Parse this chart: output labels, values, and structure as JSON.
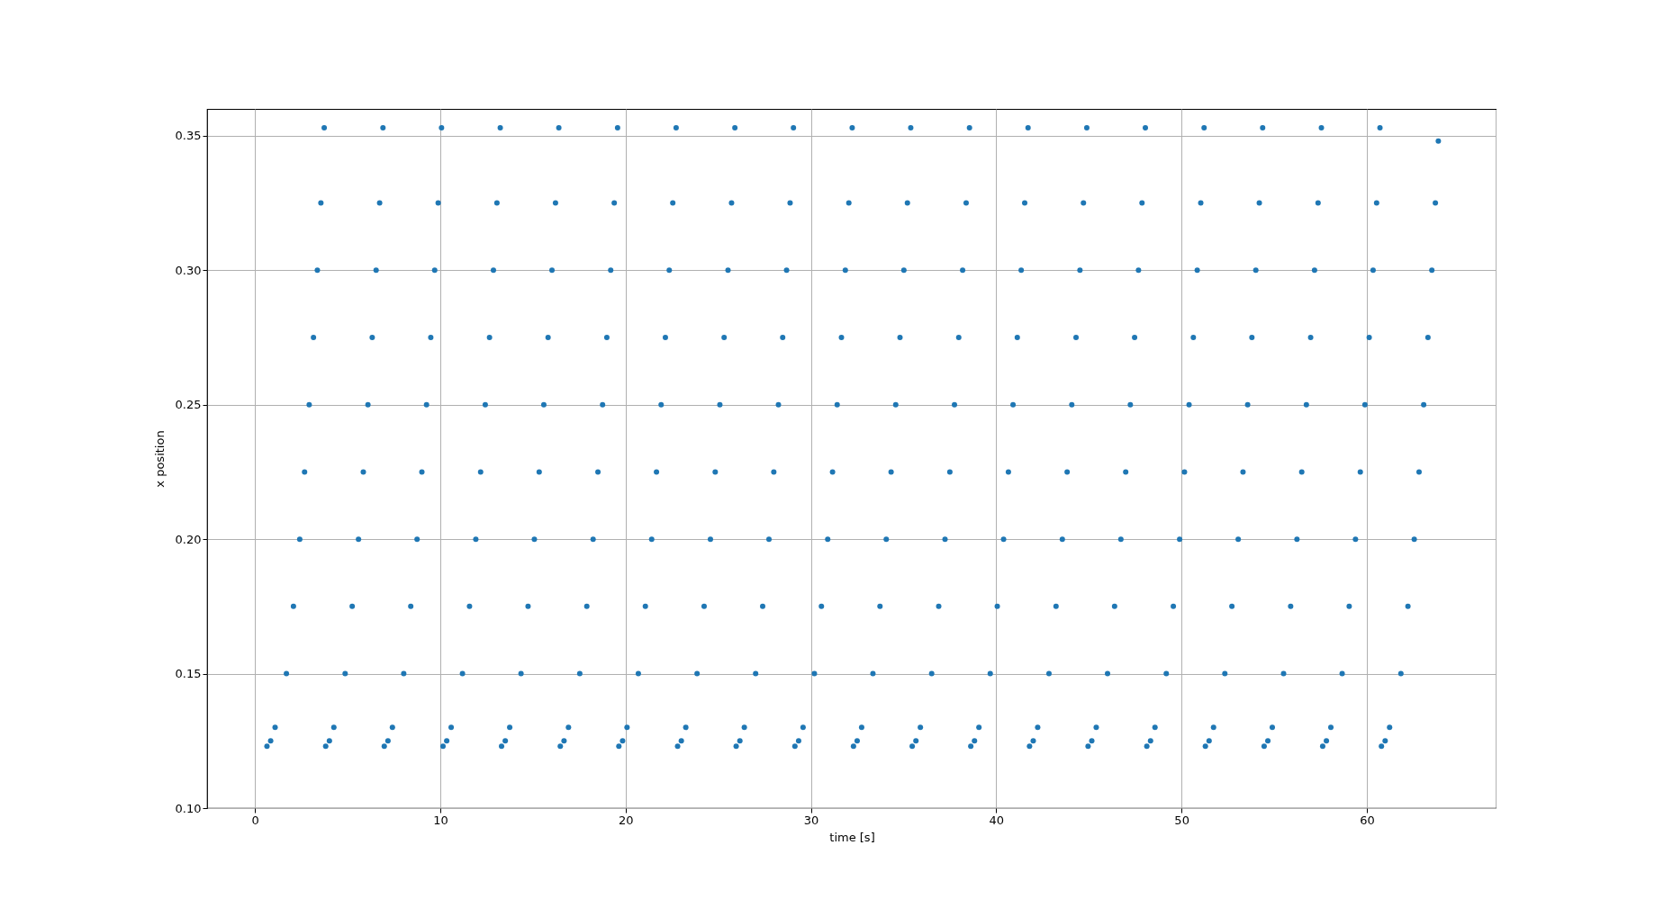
{
  "chart_data": {
    "type": "scatter",
    "xlabel": "time [s]",
    "ylabel": "x position",
    "xlim": [
      -2.58,
      67.0
    ],
    "ylim": [
      0.1,
      0.36
    ],
    "xticks": [
      0,
      10,
      20,
      30,
      40,
      50,
      60
    ],
    "yticks": [
      {
        "value": 0.1,
        "label": "0.10"
      },
      {
        "value": 0.15,
        "label": "0.15"
      },
      {
        "value": 0.2,
        "label": "0.20"
      },
      {
        "value": 0.25,
        "label": "0.25"
      },
      {
        "value": 0.3,
        "label": "0.30"
      },
      {
        "value": 0.35,
        "label": "0.35"
      }
    ],
    "grid": true,
    "marker": "circle",
    "series": [
      {
        "color": "#1f77b4",
        "x": [
          0.65,
          0.85,
          1.09,
          1.7,
          2.08,
          2.42,
          2.68,
          2.93,
          3.16,
          3.37,
          3.56,
          3.74,
          3.82,
          4.02,
          4.26,
          4.87,
          5.25,
          5.59,
          5.85,
          6.1,
          6.33,
          6.54,
          6.73,
          6.91,
          6.98,
          7.18,
          7.42,
          8.03,
          8.41,
          8.75,
          9.01,
          9.26,
          9.49,
          9.7,
          9.89,
          10.07,
          10.15,
          10.35,
          10.59,
          11.2,
          11.58,
          11.92,
          12.18,
          12.43,
          12.66,
          12.87,
          13.06,
          13.24,
          13.31,
          13.51,
          13.75,
          14.36,
          14.74,
          15.08,
          15.34,
          15.59,
          15.82,
          16.03,
          16.22,
          16.4,
          16.48,
          16.68,
          16.92,
          17.53,
          17.91,
          18.25,
          18.51,
          18.76,
          18.99,
          19.2,
          19.39,
          19.57,
          19.64,
          19.84,
          20.08,
          20.69,
          21.07,
          21.41,
          21.67,
          21.92,
          22.15,
          22.36,
          22.55,
          22.73,
          22.81,
          23.01,
          23.25,
          23.86,
          24.24,
          24.58,
          24.84,
          25.09,
          25.32,
          25.53,
          25.72,
          25.9,
          25.97,
          26.17,
          26.41,
          27.02,
          27.4,
          27.74,
          28.0,
          28.25,
          28.48,
          28.69,
          28.88,
          29.06,
          29.14,
          29.34,
          29.58,
          30.19,
          30.57,
          30.91,
          31.17,
          31.42,
          31.65,
          31.86,
          32.05,
          32.23,
          32.3,
          32.5,
          32.74,
          33.35,
          33.73,
          34.07,
          34.33,
          34.58,
          34.81,
          35.02,
          35.21,
          35.39,
          35.47,
          35.67,
          35.91,
          36.52,
          36.9,
          37.24,
          37.5,
          37.75,
          37.98,
          38.19,
          38.38,
          38.56,
          38.63,
          38.83,
          39.07,
          39.68,
          40.06,
          40.4,
          40.66,
          40.91,
          41.14,
          41.35,
          41.54,
          41.72,
          41.8,
          42.0,
          42.24,
          42.85,
          43.23,
          43.57,
          43.83,
          44.08,
          44.31,
          44.52,
          44.71,
          44.89,
          44.96,
          45.16,
          45.4,
          46.01,
          46.39,
          46.73,
          46.99,
          47.24,
          47.47,
          47.68,
          47.87,
          48.05,
          48.13,
          48.33,
          48.57,
          49.18,
          49.56,
          49.9,
          50.16,
          50.41,
          50.64,
          50.85,
          51.04,
          51.22,
          51.29,
          51.49,
          51.73,
          52.34,
          52.72,
          53.06,
          53.32,
          53.57,
          53.8,
          54.01,
          54.2,
          54.38,
          54.46,
          54.66,
          54.9,
          55.51,
          55.89,
          56.23,
          56.49,
          56.74,
          56.97,
          57.18,
          57.37,
          57.55,
          57.62,
          57.82,
          58.06,
          58.67,
          59.05,
          59.39,
          59.65,
          59.9,
          60.13,
          60.34,
          60.53,
          60.71,
          60.79,
          60.99,
          61.23,
          61.84,
          62.22,
          62.56,
          62.82,
          63.07,
          63.3,
          63.51,
          63.7,
          63.86
        ],
        "values": [
          0.123,
          0.125,
          0.13,
          0.15,
          0.175,
          0.2,
          0.225,
          0.25,
          0.275,
          0.3,
          0.325,
          0.353,
          0.123,
          0.125,
          0.13,
          0.15,
          0.175,
          0.2,
          0.225,
          0.25,
          0.275,
          0.3,
          0.325,
          0.353,
          0.123,
          0.125,
          0.13,
          0.15,
          0.175,
          0.2,
          0.225,
          0.25,
          0.275,
          0.3,
          0.325,
          0.353,
          0.123,
          0.125,
          0.13,
          0.15,
          0.175,
          0.2,
          0.225,
          0.25,
          0.275,
          0.3,
          0.325,
          0.353,
          0.123,
          0.125,
          0.13,
          0.15,
          0.175,
          0.2,
          0.225,
          0.25,
          0.275,
          0.3,
          0.325,
          0.353,
          0.123,
          0.125,
          0.13,
          0.15,
          0.175,
          0.2,
          0.225,
          0.25,
          0.275,
          0.3,
          0.325,
          0.353,
          0.123,
          0.125,
          0.13,
          0.15,
          0.175,
          0.2,
          0.225,
          0.25,
          0.275,
          0.3,
          0.325,
          0.353,
          0.123,
          0.125,
          0.13,
          0.15,
          0.175,
          0.2,
          0.225,
          0.25,
          0.275,
          0.3,
          0.325,
          0.353,
          0.123,
          0.125,
          0.13,
          0.15,
          0.175,
          0.2,
          0.225,
          0.25,
          0.275,
          0.3,
          0.325,
          0.353,
          0.123,
          0.125,
          0.13,
          0.15,
          0.175,
          0.2,
          0.225,
          0.25,
          0.275,
          0.3,
          0.325,
          0.353,
          0.123,
          0.125,
          0.13,
          0.15,
          0.175,
          0.2,
          0.225,
          0.25,
          0.275,
          0.3,
          0.325,
          0.353,
          0.123,
          0.125,
          0.13,
          0.15,
          0.175,
          0.2,
          0.225,
          0.25,
          0.275,
          0.3,
          0.325,
          0.353,
          0.123,
          0.125,
          0.13,
          0.15,
          0.175,
          0.2,
          0.225,
          0.25,
          0.275,
          0.3,
          0.325,
          0.353,
          0.123,
          0.125,
          0.13,
          0.15,
          0.175,
          0.2,
          0.225,
          0.25,
          0.275,
          0.3,
          0.325,
          0.353,
          0.123,
          0.125,
          0.13,
          0.15,
          0.175,
          0.2,
          0.225,
          0.25,
          0.275,
          0.3,
          0.325,
          0.353,
          0.123,
          0.125,
          0.13,
          0.15,
          0.175,
          0.2,
          0.225,
          0.25,
          0.275,
          0.3,
          0.325,
          0.353,
          0.123,
          0.125,
          0.13,
          0.15,
          0.175,
          0.2,
          0.225,
          0.25,
          0.275,
          0.3,
          0.325,
          0.353,
          0.123,
          0.125,
          0.13,
          0.15,
          0.175,
          0.2,
          0.225,
          0.25,
          0.275,
          0.3,
          0.325,
          0.353,
          0.123,
          0.125,
          0.13,
          0.15,
          0.175,
          0.2,
          0.225,
          0.25,
          0.275,
          0.3,
          0.325,
          0.353,
          0.123,
          0.125,
          0.13,
          0.15,
          0.175,
          0.2,
          0.225,
          0.25,
          0.275,
          0.3,
          0.325,
          0.348
        ]
      }
    ]
  }
}
